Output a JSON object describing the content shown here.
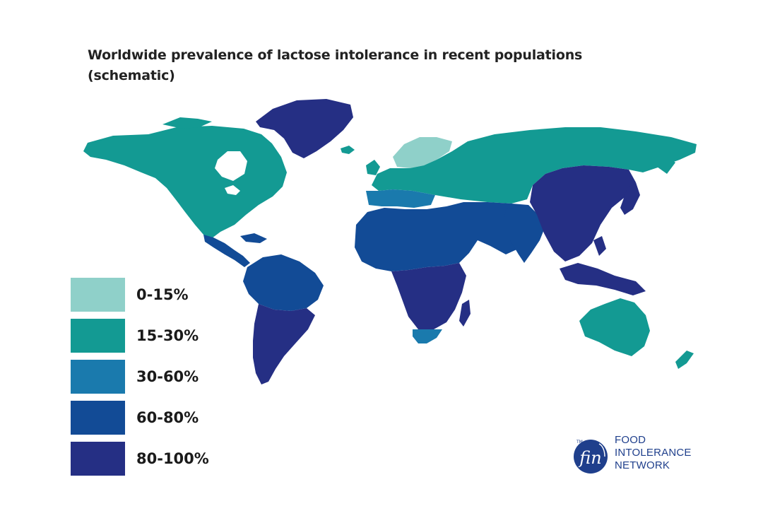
{
  "title": {
    "line1": "Worldwide prevalence of lactose intolerance in recent populations",
    "line2": "(schematic)"
  },
  "legend": [
    {
      "label": "0-15%",
      "color": "#8fd0c9"
    },
    {
      "label": "15-30%",
      "color": "#139a93"
    },
    {
      "label": "30-60%",
      "color": "#1a7aad"
    },
    {
      "label": "60-80%",
      "color": "#124b96"
    },
    {
      "label": "80-100%",
      "color": "#252f84"
    }
  ],
  "regions": [
    {
      "name": "North America",
      "category": "15-30%"
    },
    {
      "name": "Greenland",
      "category": "80-100%"
    },
    {
      "name": "Central America and Caribbean",
      "category": "60-80%"
    },
    {
      "name": "Northern South America",
      "category": "60-80%"
    },
    {
      "name": "Southern South America",
      "category": "80-100%"
    },
    {
      "name": "Scandinavia",
      "category": "0-15%"
    },
    {
      "name": "Central Europe and Russia",
      "category": "15-30%"
    },
    {
      "name": "Southern Europe",
      "category": "30-60%"
    },
    {
      "name": "North Africa and Middle East",
      "category": "60-80%"
    },
    {
      "name": "South Asia",
      "category": "60-80%"
    },
    {
      "name": "East Asia and Southeast Asia",
      "category": "80-100%"
    },
    {
      "name": "Sub-Saharan Africa",
      "category": "80-100%"
    },
    {
      "name": "Southern Africa",
      "category": "30-60%"
    },
    {
      "name": "Australia and New Zealand",
      "category": "15-30%"
    }
  ],
  "logo": {
    "mark": "fin",
    "tm": "TM",
    "line1": "FOOD",
    "line2": "INTOLERANCE",
    "line3": "NETWORK",
    "color": "#1f3f8c"
  }
}
